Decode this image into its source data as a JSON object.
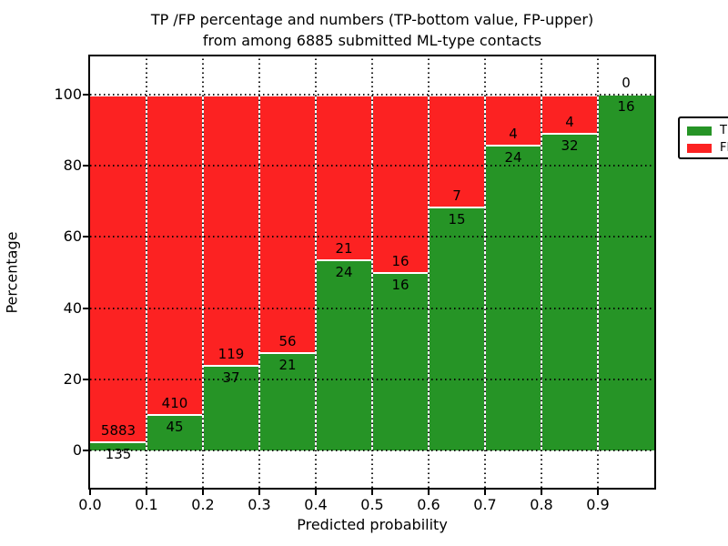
{
  "title": {
    "line1": "TP /FP percentage and numbers (TP-bottom value, FP-upper)",
    "line2": "from among 6885 submitted ML-type contacts"
  },
  "axes": {
    "xlabel": "Predicted probability",
    "ylabel": "Percentage",
    "ytick_labels": [
      "0",
      "20",
      "40",
      "60",
      "80",
      "100"
    ],
    "ytick_values": [
      0,
      20,
      40,
      60,
      80,
      100
    ],
    "xtick_labels": [
      "0.0",
      "0.1",
      "0.2",
      "0.3",
      "0.4",
      "0.5",
      "0.6",
      "0.7",
      "0.8",
      "0.9"
    ]
  },
  "legend": {
    "items": [
      {
        "label": "TP",
        "color": "#269426"
      },
      {
        "label": "FP",
        "color": "#fc2222"
      }
    ]
  },
  "colors": {
    "tp_green": "#269426",
    "fp_red": "#fc2222",
    "grid": "#000000",
    "bar_edge": "#ffffff"
  },
  "chart_data": {
    "type": "bar",
    "stacked": true,
    "normalized": "percent",
    "title": "TP /FP percentage and numbers (TP-bottom value, FP-upper)\nfrom among 6885 submitted ML-type contacts",
    "xlabel": "Predicted probability",
    "ylabel": "Percentage",
    "total_contacts": 6885,
    "bin_width": 0.1,
    "categories": [
      "0.0-0.1",
      "0.1-0.2",
      "0.2-0.3",
      "0.3-0.4",
      "0.4-0.5",
      "0.5-0.6",
      "0.6-0.7",
      "0.7-0.8",
      "0.8-0.9",
      "0.9-1.0"
    ],
    "series": [
      {
        "name": "TP",
        "color": "#269426",
        "counts": [
          135,
          45,
          37,
          21,
          24,
          16,
          15,
          24,
          32,
          16
        ]
      },
      {
        "name": "FP",
        "color": "#fc2222",
        "counts": [
          5883,
          410,
          119,
          56,
          21,
          16,
          7,
          4,
          4,
          0
        ]
      }
    ],
    "tp_percent": [
      2.2,
      9.9,
      23.7,
      27.3,
      53.3,
      50.0,
      68.2,
      85.7,
      88.9,
      100.0
    ],
    "ylim_percent": [
      0,
      100
    ],
    "yticks": [
      0,
      20,
      40,
      60,
      80,
      100
    ],
    "xticks": [
      0.0,
      0.1,
      0.2,
      0.3,
      0.4,
      0.5,
      0.6,
      0.7,
      0.8,
      0.9
    ],
    "grid": true,
    "legend_position": "upper right"
  }
}
